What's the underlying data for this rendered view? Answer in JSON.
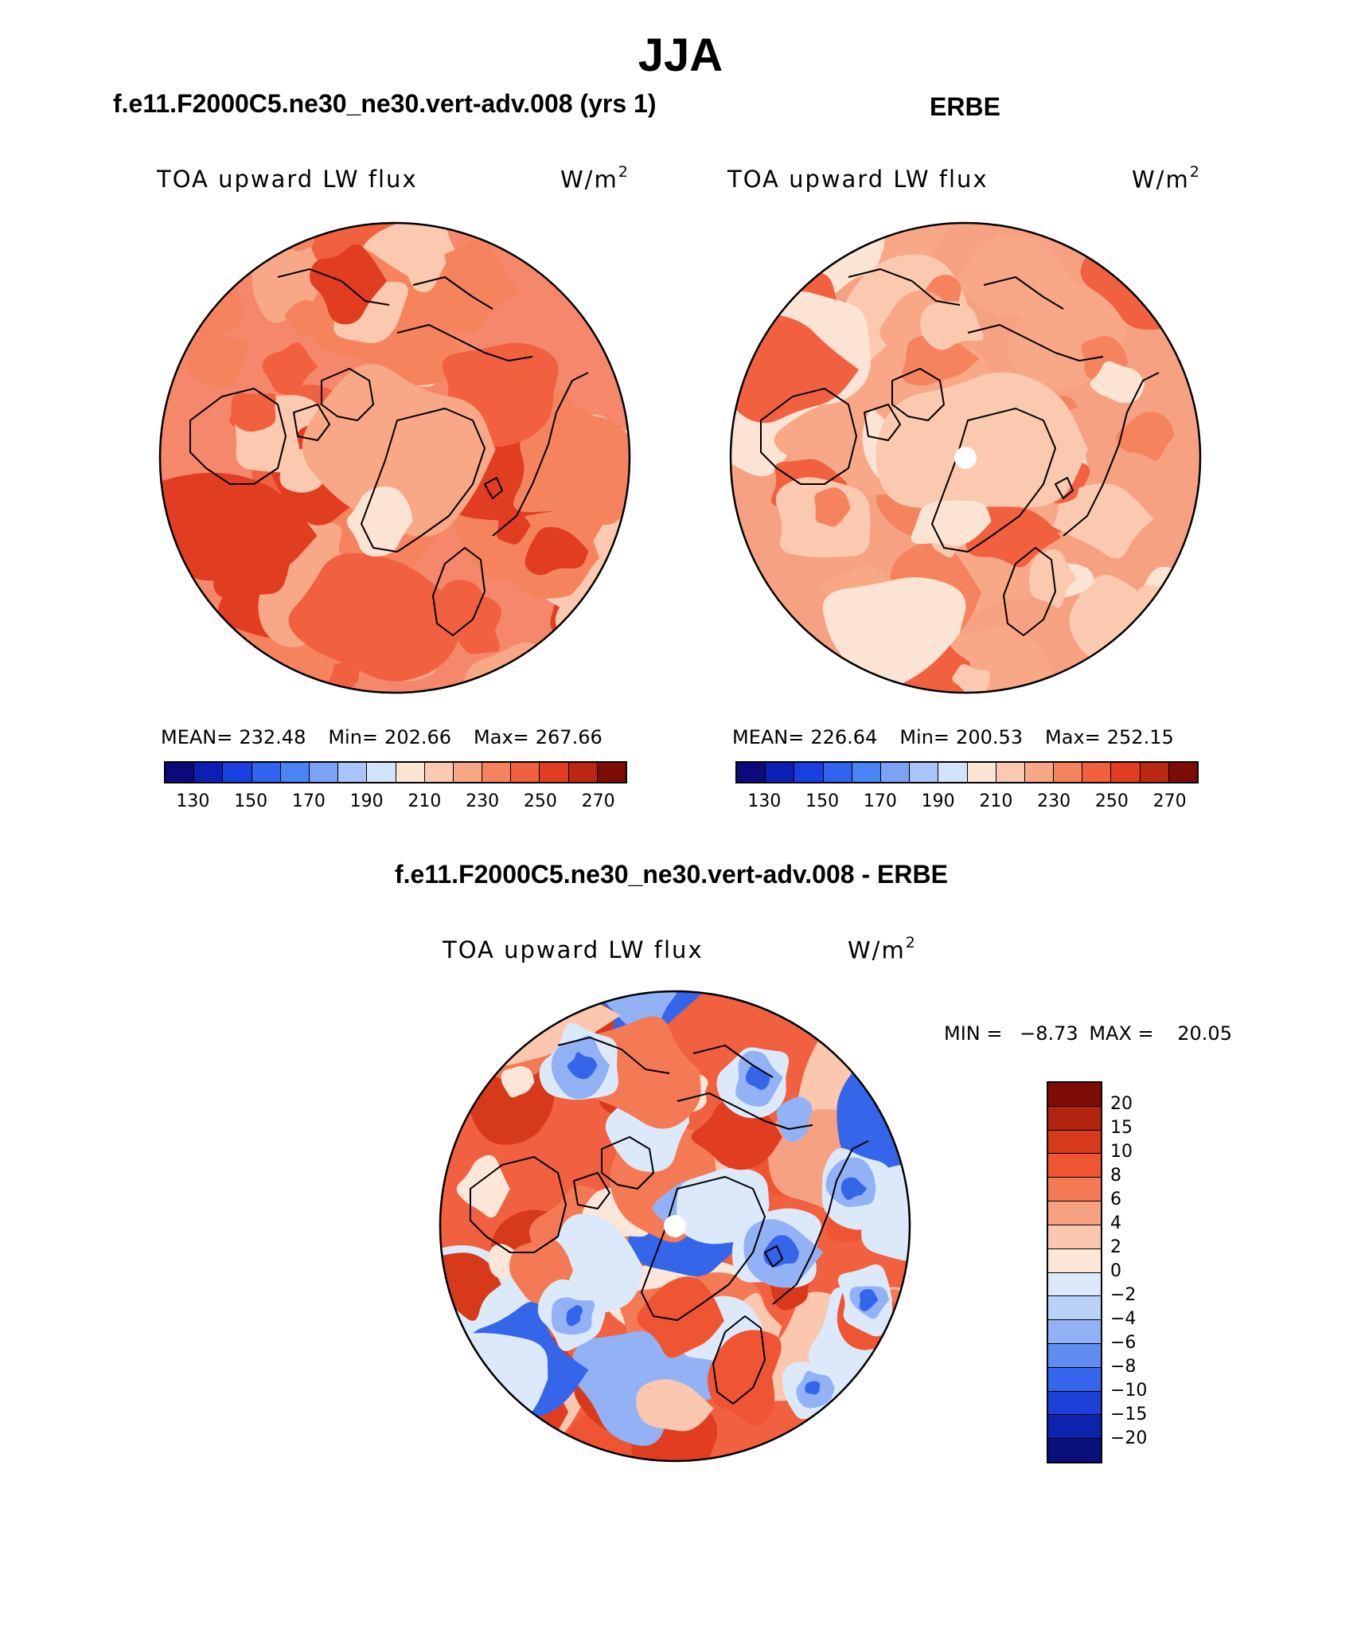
{
  "figure": {
    "title": "JJA"
  },
  "panels": [
    {
      "id": "model",
      "title": "f.e11.F2000C5.ne30_ne30.vert-adv.008 (yrs 1)",
      "field_label": "TOA upward LW flux",
      "units": "W/m",
      "units_exp": "2",
      "stats": {
        "mean_label": "MEAN=",
        "mean": "232.48",
        "min_label": "Min=",
        "min": "202.66",
        "max_label": "Max=",
        "max": "267.66"
      },
      "polar_hole": false,
      "dominant_color": "#f5876a"
    },
    {
      "id": "obs",
      "title": "ERBE",
      "field_label": "TOA upward LW flux",
      "units": "W/m",
      "units_exp": "2",
      "stats": {
        "mean_label": "MEAN=",
        "mean": "226.64",
        "min_label": "Min=",
        "min": "200.53",
        "max_label": "Max=",
        "max": "252.15"
      },
      "polar_hole": true,
      "dominant_color": "#f7a183"
    },
    {
      "id": "diff",
      "title": "f.e11.F2000C5.ne30_ne30.vert-adv.008 - ERBE",
      "field_label": "TOA upward LW flux",
      "units": "W/m",
      "units_exp": "2",
      "minmax": {
        "min_label": "MIN =",
        "min": "−8.73",
        "max_label": "MAX =",
        "max": "20.05"
      },
      "polar_hole": true,
      "dominant_color": "#f1603f"
    }
  ],
  "colorbar_abs": {
    "colors": [
      "#0b0a78",
      "#0c1fb5",
      "#1a3fe0",
      "#2f63f0",
      "#4a83f3",
      "#7aa3f5",
      "#a8c4f8",
      "#d2e3fb",
      "#fce4d4",
      "#fbc8b0",
      "#f8a887",
      "#f5845e",
      "#f1603f",
      "#e03d21",
      "#bb2710",
      "#7d0c05"
    ],
    "tick_labels": [
      "130",
      "150",
      "170",
      "190",
      "210",
      "230",
      "250",
      "270"
    ]
  },
  "colorbar_diff": {
    "colors": [
      "#7d0c05",
      "#b3240f",
      "#d7391b",
      "#ef5532",
      "#f47a55",
      "#f7a183",
      "#fbc7ae",
      "#fce6d8",
      "#dce9fb",
      "#bad2f8",
      "#92b2f5",
      "#5f8cf0",
      "#3566ea",
      "#1a40d8",
      "#0c24ad",
      "#090f7c"
    ],
    "tick_labels": [
      "20",
      "15",
      "10",
      "8",
      "6",
      "4",
      "2",
      "0",
      "−2",
      "−4",
      "−6",
      "−8",
      "−10",
      "−15",
      "−20"
    ]
  }
}
